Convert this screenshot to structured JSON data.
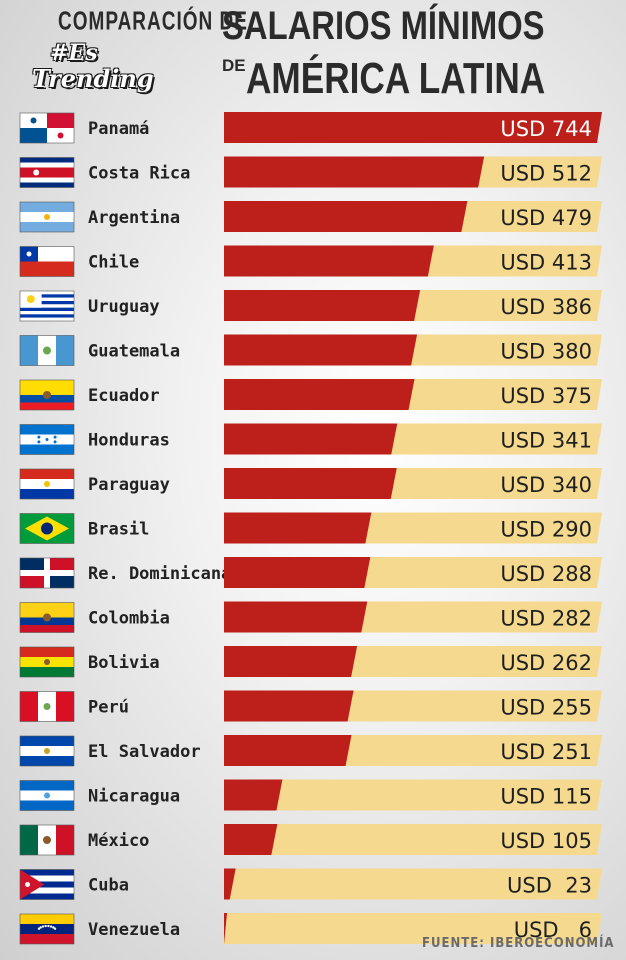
{
  "header": {
    "title_lead": "COMPARACIÓN DE",
    "title_main_line1": "SALARIOS MÍNIMOS",
    "title_de": "DE",
    "title_main_line2": "AMÉRICA LATINA",
    "logo_hash": "#Es",
    "logo_word": "Trending"
  },
  "colors": {
    "bar_fill": "#bd1f1a",
    "bar_track": "#f4d98f",
    "text_dark": "#222222"
  },
  "chart_data": {
    "type": "bar",
    "orientation": "horizontal",
    "title": "COMPARACIÓN DE SALARIOS MÍNIMOS DE AMÉRICA LATINA",
    "categories": [
      "Panamá",
      "Costa Rica",
      "Argentina",
      "Chile",
      "Uruguay",
      "Guatemala",
      "Ecuador",
      "Honduras",
      "Paraguay",
      "Brasil",
      "Re. Dominicana",
      "Colombia",
      "Bolivia",
      "Perú",
      "El Salvador",
      "Nicaragua",
      "México",
      "Cuba",
      "Venezuela"
    ],
    "values": [
      744,
      512,
      479,
      413,
      386,
      380,
      375,
      341,
      340,
      290,
      288,
      282,
      262,
      255,
      251,
      115,
      105,
      23,
      6
    ],
    "value_labels": [
      "USD 744",
      "USD 512",
      "USD 479",
      "USD 413",
      "USD 386",
      "USD 380",
      "USD 375",
      "USD 341",
      "USD 340",
      "USD 290",
      "USD 288",
      "USD 282",
      "USD 262",
      "USD 255",
      "USD 251",
      "USD 115",
      "USD 105",
      "USD  23",
      "USD   6"
    ],
    "flag_icons": [
      "flag-panama-icon",
      "flag-costa-rica-icon",
      "flag-argentina-icon",
      "flag-chile-icon",
      "flag-uruguay-icon",
      "flag-guatemala-icon",
      "flag-ecuador-icon",
      "flag-honduras-icon",
      "flag-paraguay-icon",
      "flag-brasil-icon",
      "flag-re-dominicana-icon",
      "flag-colombia-icon",
      "flag-bolivia-icon",
      "flag-peru-icon",
      "flag-el-salvador-icon",
      "flag-nicaragua-icon",
      "flag-mexico-icon",
      "flag-cuba-icon",
      "flag-venezuela-icon"
    ],
    "xlim": [
      0,
      744
    ],
    "unit": "USD"
  },
  "source_note": "FUENTE: IBEROECONOMÍA"
}
